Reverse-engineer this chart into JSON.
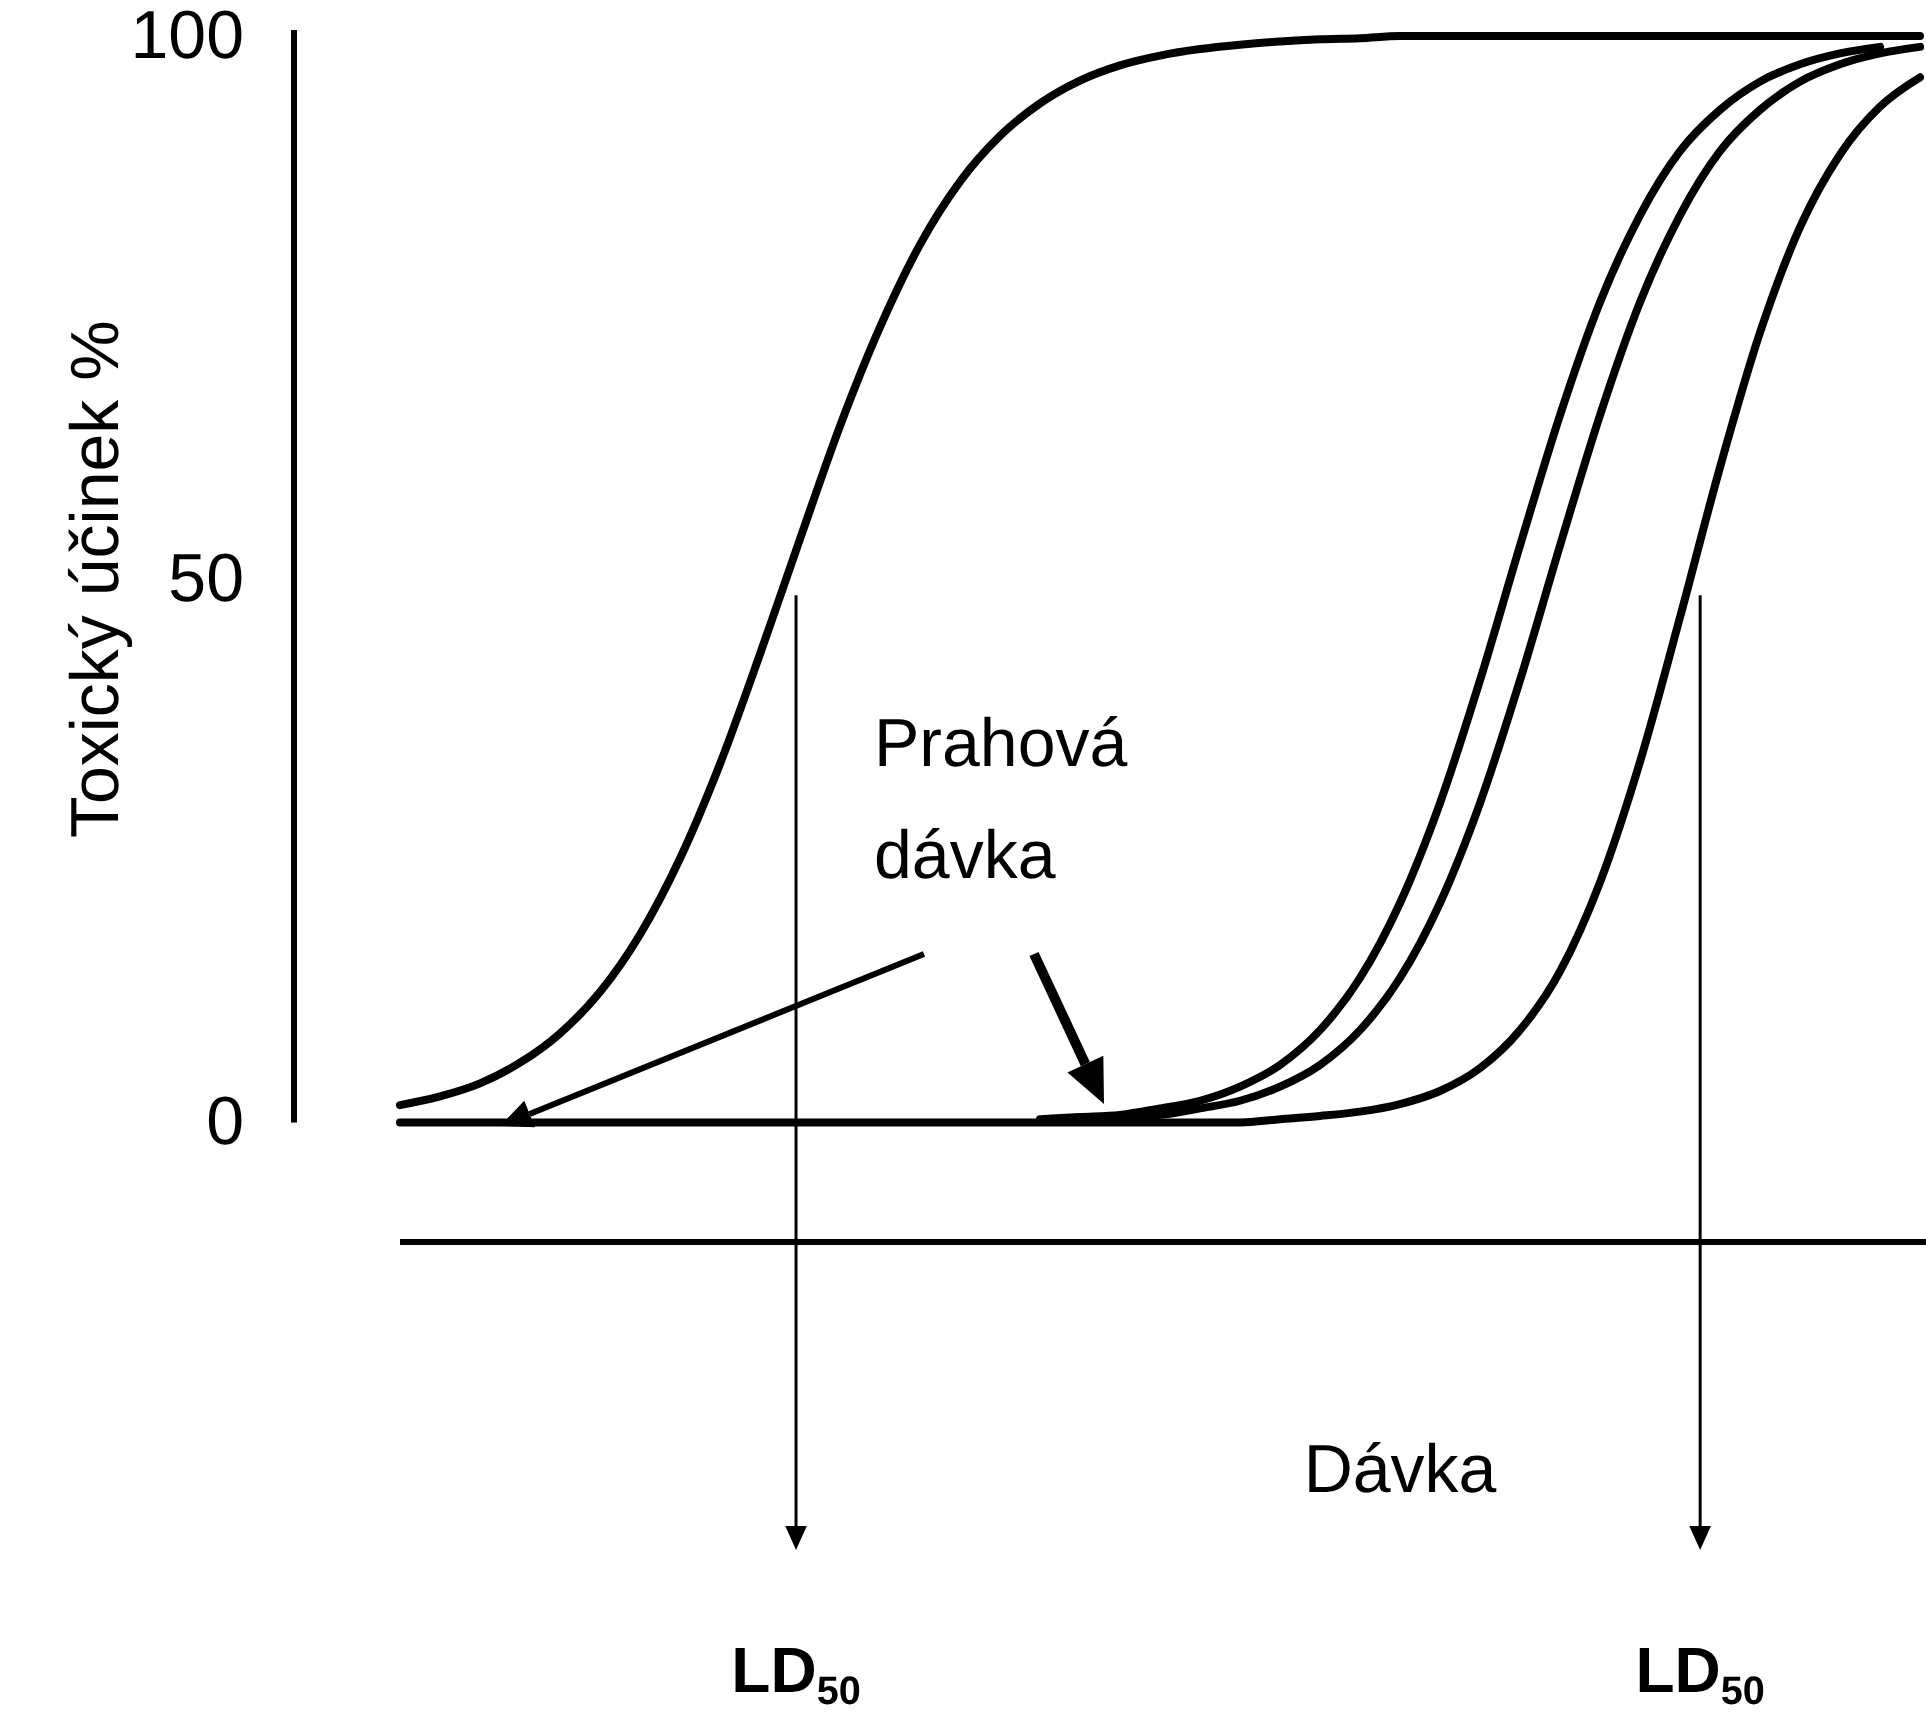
{
  "chart_data": {
    "type": "line",
    "ylabel": "Toxický účinek %",
    "xlabel": "Dávka",
    "tick_labels": "y",
    "categories": [
      null,
      null,
      null,
      null,
      null,
      null,
      null,
      null,
      null,
      null,
      null,
      null,
      null,
      null,
      null,
      null,
      null,
      null,
      null,
      null,
      null,
      null,
      null,
      null,
      null,
      null,
      null,
      null,
      null,
      null,
      null,
      null,
      null,
      null,
      null,
      null,
      null,
      null,
      null
    ],
    "ylim": [
      -11,
      100
    ],
    "yticks": [
      0,
      50,
      100
    ],
    "series": [
      {
        "color": "#000000",
        "values": [
          1.6,
          2.4,
          3.6,
          5.5,
          8.2,
          12.0,
          17.3,
          24.3,
          33.0,
          43.1,
          53.7,
          64.1,
          73.2,
          80.8,
          86.6,
          90.8,
          93.8,
          95.9,
          97.3,
          98.2,
          98.8,
          99.2,
          99.5,
          99.7,
          99.8,
          100,
          100,
          100,
          100,
          100,
          100,
          100,
          100,
          100,
          100,
          100,
          100,
          100,
          100
        ]
      },
      {
        "color": "#000000",
        "values": [
          null,
          null,
          null,
          null,
          null,
          null,
          null,
          null,
          null,
          null,
          null,
          null,
          null,
          null,
          null,
          null,
          0.3,
          0.5,
          0.7,
          1.3,
          2.0,
          3.3,
          5.3,
          8.5,
          13.3,
          20.2,
          29.4,
          40.7,
          53.1,
          65.1,
          75.5,
          83.5,
          89.4,
          93.2,
          95.8,
          97.4,
          98.4,
          99.0,
          null
        ]
      },
      {
        "color": "#000000",
        "values": [
          null,
          null,
          null,
          null,
          null,
          null,
          null,
          null,
          null,
          null,
          null,
          null,
          null,
          null,
          null,
          null,
          null,
          0.3,
          0.5,
          0.7,
          1.3,
          2.0,
          3.3,
          5.3,
          8.5,
          13.3,
          20.2,
          29.4,
          40.7,
          53.1,
          65.1,
          75.5,
          83.5,
          89.4,
          93.2,
          95.8,
          97.4,
          98.4,
          99.0
        ]
      },
      {
        "color": "#000000",
        "values": [
          0,
          0,
          0,
          0,
          0,
          0,
          0,
          0,
          0,
          0,
          0,
          0,
          0,
          0,
          0,
          0,
          0,
          0,
          0,
          0,
          0,
          0,
          0.3,
          0.6,
          1.0,
          1.7,
          2.9,
          5.0,
          8.5,
          13.9,
          22.1,
          33.2,
          46.5,
          60.3,
          72.7,
          82.4,
          89.1,
          93.5,
          96.2
        ]
      }
    ],
    "annotations": [
      "Prahová dávka",
      "LD$_{50}$",
      "LD$_{50}$"
    ]
  }
}
